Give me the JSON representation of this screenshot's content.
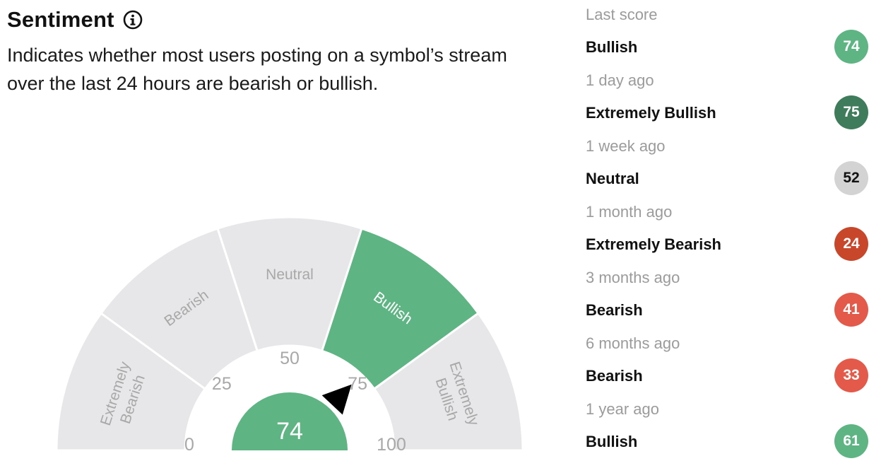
{
  "header": {
    "title": "Sentiment",
    "info_icon": "info-icon",
    "description_line1": "Indicates whether most users posting on a symbol’s stream",
    "description_line2": "over the last 24 hours are bearish or bullish."
  },
  "gauge": {
    "value": 74,
    "value_label": "74",
    "segments": [
      {
        "label_line1": "Extremely",
        "label_line2": "Bearish",
        "color": "#e7e7ea",
        "text_color": "#a8a8a8"
      },
      {
        "label_line1": "Bearish",
        "label_line2": "",
        "color": "#e7e7ea",
        "text_color": "#a8a8a8"
      },
      {
        "label_line1": "Neutral",
        "label_line2": "",
        "color": "#e7e7ea",
        "text_color": "#a8a8a8"
      },
      {
        "label_line1": "Bullish",
        "label_line2": "",
        "color": "#5fb484",
        "text_color": "#ffffff"
      },
      {
        "label_line1": "Extremely",
        "label_line2": "Bullish",
        "color": "#e7e7ea",
        "text_color": "#a8a8a8"
      }
    ],
    "ticks": [
      "0",
      "25",
      "50",
      "75",
      "100"
    ],
    "center_color": "#5fb484",
    "needle_color": "#000000"
  },
  "history": [
    {
      "period": "Last score",
      "label": "Bullish",
      "score": "74",
      "color": "#5fb484",
      "text_color": "#ffffff"
    },
    {
      "period": "1 day ago",
      "label": "Extremely Bullish",
      "score": "75",
      "color": "#3f7c5b",
      "text_color": "#ffffff"
    },
    {
      "period": "1 week ago",
      "label": "Neutral",
      "score": "52",
      "color": "#d3d3d3",
      "text_color": "#111111"
    },
    {
      "period": "1 month ago",
      "label": "Extremely Bearish",
      "score": "24",
      "color": "#c8472b",
      "text_color": "#ffffff"
    },
    {
      "period": "3 months ago",
      "label": "Bearish",
      "score": "41",
      "color": "#e45a4a",
      "text_color": "#ffffff"
    },
    {
      "period": "6 months ago",
      "label": "Bearish",
      "score": "33",
      "color": "#e45a4a",
      "text_color": "#ffffff"
    },
    {
      "period": "1 year ago",
      "label": "Bullish",
      "score": "61",
      "color": "#5fb484",
      "text_color": "#ffffff"
    }
  ]
}
